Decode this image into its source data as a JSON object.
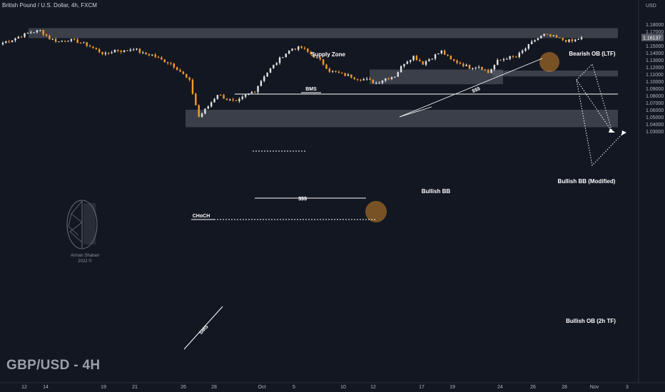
{
  "header": {
    "title": "British Pound / U.S. Dollar, 4h, FXCM",
    "watermark": "GBP/USD - 4H",
    "currency": "USD"
  },
  "logo": {
    "author": "Arman Shaban",
    "year": "2022 ©"
  },
  "colors": {
    "background": "#131722",
    "bull": "#e3e3e3",
    "bear": "#f39c2b",
    "zone": "#5d606b",
    "highlight": "#f39c2b",
    "text": "#ffffff",
    "axis_text": "#b2b5be"
  },
  "chart_data": {
    "type": "candlestick",
    "title": "British Pound / U.S. Dollar, 4h, FXCM",
    "ylabel": "USD",
    "ylim": [
      1.0255,
      1.1955
    ],
    "y_ticks": [
      "1.18000",
      "1.17000",
      "1.16000",
      "1.15000",
      "1.14000",
      "1.13000",
      "1.12000",
      "1.11000",
      "1.10000",
      "1.09000",
      "1.08000",
      "1.07000",
      "1.06000",
      "1.05000",
      "1.04000",
      "1.03000"
    ],
    "current_price": "1.16137",
    "x_ticks": [
      "12",
      "14",
      "19",
      "21",
      "26",
      "28",
      "Oct",
      "5",
      "10",
      "12",
      "17",
      "19",
      "24",
      "26",
      "28",
      "Nov",
      "3"
    ],
    "close_path": [
      [
        "12",
        1.154
      ],
      [
        "12",
        1.1585
      ],
      [
        "12",
        1.164
      ],
      [
        "14",
        1.169
      ],
      [
        "14",
        1.171
      ],
      [
        "14",
        1.16
      ],
      [
        "14",
        1.1555
      ],
      [
        "14",
        1.1585
      ],
      [
        "14",
        1.1555
      ],
      [
        "14",
        1.151
      ],
      [
        "19",
        1.144
      ],
      [
        "19",
        1.1375
      ],
      [
        "19",
        1.144
      ],
      [
        "19",
        1.142
      ],
      [
        "19",
        1.1465
      ],
      [
        "19",
        1.1385
      ],
      [
        "21",
        1.137
      ],
      [
        "21",
        1.13
      ],
      [
        "21",
        1.125
      ],
      [
        "21",
        1.114
      ],
      [
        "26",
        1.1
      ],
      [
        "26",
        1.05
      ],
      [
        "26",
        1.065
      ],
      [
        "28",
        1.082
      ],
      [
        "28",
        1.075
      ],
      [
        "28",
        1.07
      ],
      [
        "28",
        1.08
      ],
      [
        "28",
        1.087
      ],
      [
        "Oct",
        1.108
      ],
      [
        "Oct",
        1.122
      ],
      [
        "5",
        1.136
      ],
      [
        "5",
        1.146
      ],
      [
        "5",
        1.147
      ],
      [
        "5",
        1.138
      ],
      [
        "5",
        1.129
      ],
      [
        "10",
        1.115
      ],
      [
        "10",
        1.111
      ],
      [
        "10",
        1.108
      ],
      [
        "10",
        1.104
      ],
      [
        "12",
        1.102
      ],
      [
        "12",
        1.0975
      ],
      [
        "12",
        1.104
      ],
      [
        "12",
        1.1075
      ],
      [
        "17",
        1.126
      ],
      [
        "17",
        1.135
      ],
      [
        "17",
        1.125
      ],
      [
        "19",
        1.134
      ],
      [
        "19",
        1.142
      ],
      [
        "19",
        1.13
      ],
      [
        "19",
        1.125
      ],
      [
        "19",
        1.1195
      ],
      [
        "24",
        1.121
      ],
      [
        "24",
        1.112
      ],
      [
        "24",
        1.128
      ],
      [
        "24",
        1.133
      ],
      [
        "24",
        1.134
      ],
      [
        "26",
        1.146
      ],
      [
        "26",
        1.158
      ],
      [
        "26",
        1.165
      ],
      [
        "28",
        1.162
      ],
      [
        "28",
        1.158
      ],
      [
        "28",
        1.156
      ],
      [
        "28",
        1.1613
      ]
    ],
    "levels": [
      {
        "label": "Supply Zone",
        "from": 1.1605,
        "to": 1.1745,
        "type": "zone"
      },
      {
        "label": "Bearish OB (LTF)",
        "from": 1.1605,
        "to": 1.1745,
        "type": "zone"
      },
      {
        "label": "Bullish BB",
        "from": 1.0958,
        "to": 1.1165,
        "type": "zone"
      },
      {
        "label": "Bullish BB (Modified)",
        "from": 1.1068,
        "to": 1.115,
        "type": "zone"
      },
      {
        "label": "Bullish OB (2h TF)",
        "from": 1.0355,
        "to": 1.06,
        "type": "zone"
      },
      {
        "label": "horizontal level",
        "value": 1.082,
        "type": "line"
      }
    ],
    "annotations": [
      "BMS",
      "$$$",
      "CHoCH",
      "SMS",
      "$$$"
    ],
    "grid": false,
    "legend": "none"
  }
}
